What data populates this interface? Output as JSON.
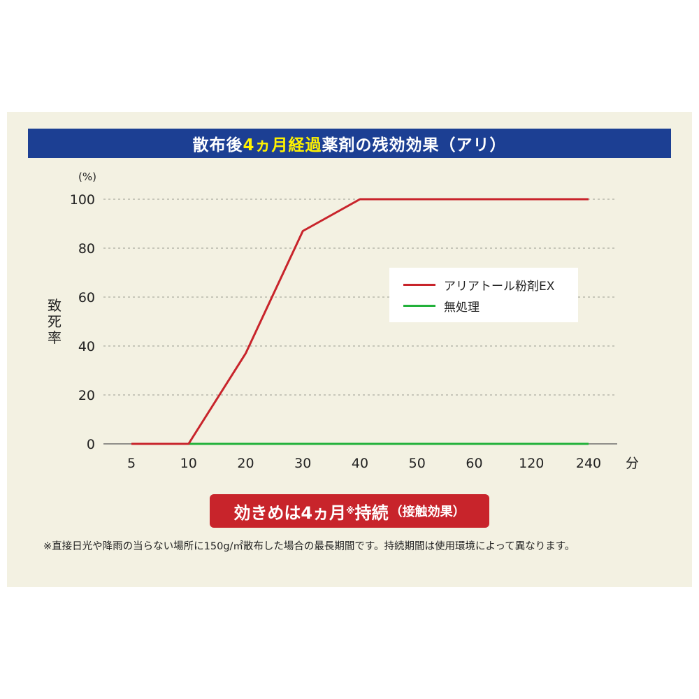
{
  "title": {
    "part1": "散布後",
    "part2": "4ヵ月経過",
    "part3": "薬剤の残効効果（アリ）"
  },
  "badge": {
    "main": "効きめは4ヵ月",
    "mark": "※",
    "after": "持続",
    "sub": "（接触効果）"
  },
  "footnote": "※直接日光や降雨の当らない場所に150g/㎡散布した場合の最長期間です。持続期間は使用環境によって異なります。",
  "colors": {
    "red_series": "#c8242b",
    "green_series": "#22b13a",
    "title_bg": "#1c3f93",
    "panel_bg": "#f3f1e2"
  },
  "chart_data": {
    "type": "line",
    "categories": [
      "5",
      "10",
      "20",
      "30",
      "40",
      "50",
      "60",
      "120",
      "240"
    ],
    "x_unit": "分",
    "y_unit": "(%)",
    "ylabel": "致死率",
    "ylim": [
      0,
      100
    ],
    "yticks": [
      0,
      20,
      40,
      60,
      80,
      100
    ],
    "grid": "horizontal-dashed",
    "legend": "upper-right",
    "series": [
      {
        "name": "アリアトール粉剤EX",
        "color": "#c8242b",
        "values": [
          0,
          0,
          37,
          87,
          100,
          100,
          100,
          100,
          100
        ]
      },
      {
        "name": "無処理",
        "color": "#22b13a",
        "values": [
          null,
          0,
          0,
          0,
          0,
          0,
          0,
          0,
          0
        ]
      }
    ]
  }
}
